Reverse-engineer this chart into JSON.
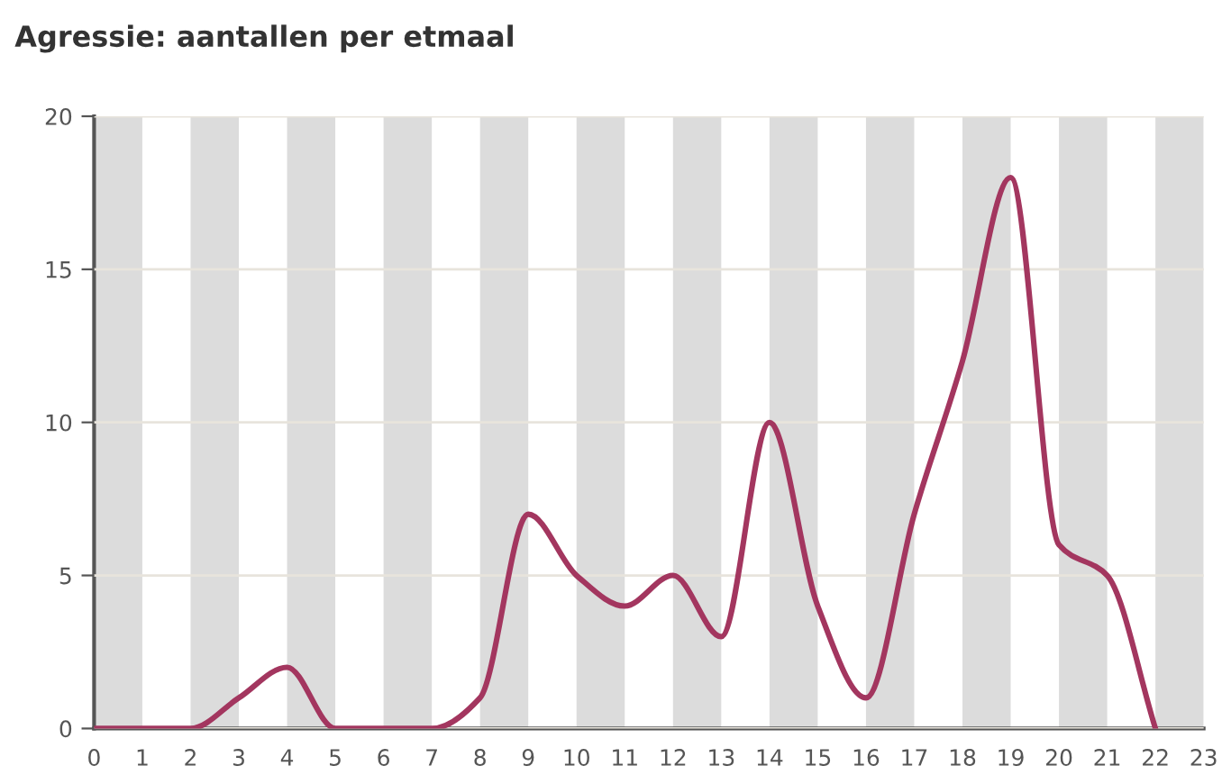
{
  "chart_data": {
    "type": "line",
    "title": "Agressie: aantallen per etmaal",
    "x": [
      0,
      1,
      2,
      3,
      4,
      5,
      6,
      7,
      8,
      9,
      10,
      11,
      12,
      13,
      14,
      15,
      16,
      17,
      18,
      19,
      20,
      21,
      22
    ],
    "series": [
      {
        "color": "#a3365f",
        "values": [
          0,
          0,
          0,
          1,
          2,
          0,
          0,
          0,
          1,
          7,
          5,
          4,
          5,
          3,
          10,
          4,
          1,
          7,
          12,
          18,
          6,
          5,
          0
        ]
      }
    ],
    "xlim": [
      0,
      23
    ],
    "xticks": [
      0,
      1,
      2,
      3,
      4,
      5,
      6,
      7,
      8,
      9,
      10,
      11,
      12,
      13,
      14,
      15,
      16,
      17,
      18,
      19,
      20,
      21,
      22,
      23
    ],
    "ylim": [
      0,
      20
    ],
    "yticks": [
      0,
      5,
      10,
      15,
      20
    ],
    "grid": "y",
    "legend": false,
    "marker": "none",
    "line_style": "solid",
    "bands": [
      {
        "axis": "x",
        "from": 0,
        "to": 1,
        "color": "#dcdcdc"
      },
      {
        "axis": "x",
        "from": 2,
        "to": 3,
        "color": "#dcdcdc"
      },
      {
        "axis": "x",
        "from": 4,
        "to": 5,
        "color": "#dcdcdc"
      },
      {
        "axis": "x",
        "from": 6,
        "to": 7,
        "color": "#dcdcdc"
      },
      {
        "axis": "x",
        "from": 8,
        "to": 9,
        "color": "#dcdcdc"
      },
      {
        "axis": "x",
        "from": 10,
        "to": 11,
        "color": "#dcdcdc"
      },
      {
        "axis": "x",
        "from": 12,
        "to": 13,
        "color": "#dcdcdc"
      },
      {
        "axis": "x",
        "from": 14,
        "to": 15,
        "color": "#dcdcdc"
      },
      {
        "axis": "x",
        "from": 16,
        "to": 17,
        "color": "#dcdcdc"
      },
      {
        "axis": "x",
        "from": 18,
        "to": 19,
        "color": "#dcdcdc"
      },
      {
        "axis": "x",
        "from": 20,
        "to": 21,
        "color": "#dcdcdc"
      },
      {
        "axis": "x",
        "from": 22,
        "to": 23,
        "color": "#dcdcdc"
      }
    ]
  }
}
